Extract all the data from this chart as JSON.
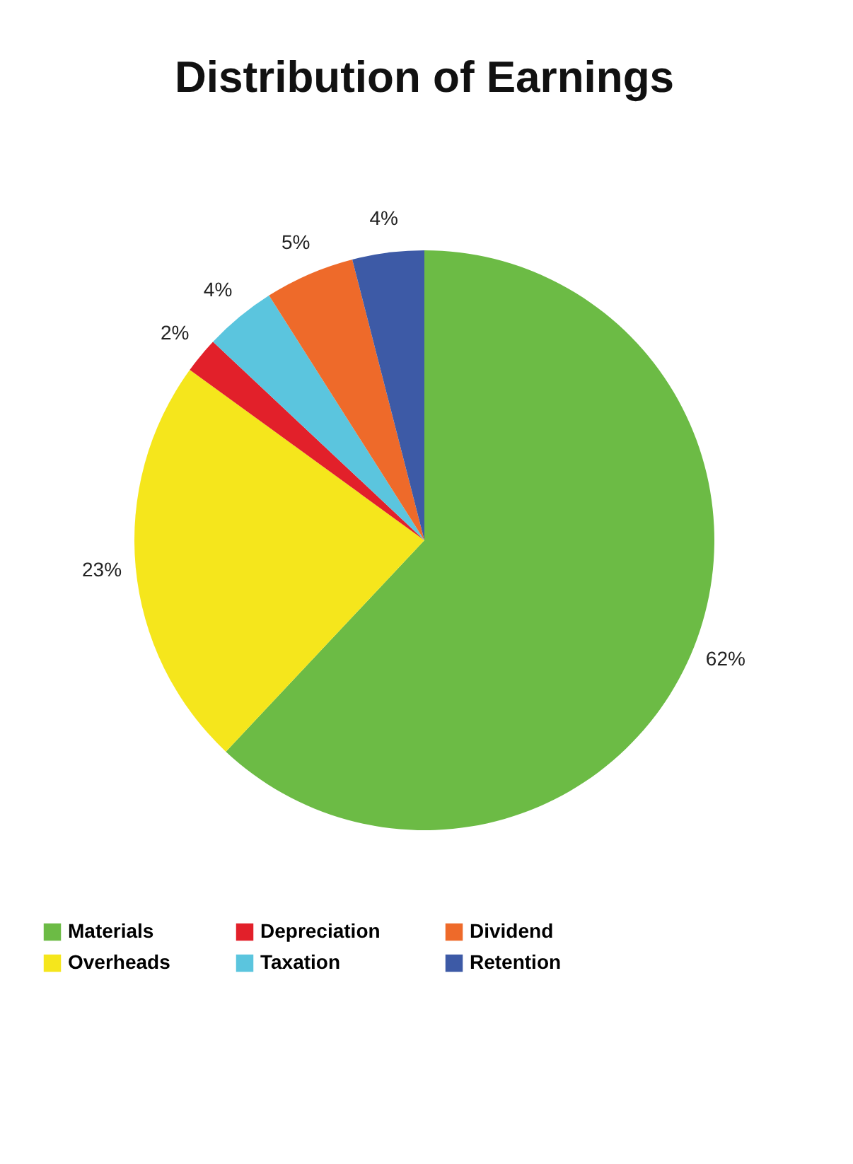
{
  "chart_data": {
    "type": "pie",
    "title": "Distribution of Earnings",
    "categories": [
      "Materials",
      "Overheads",
      "Depreciation",
      "Taxation",
      "Dividend",
      "Retention"
    ],
    "values": [
      62,
      23,
      2,
      4,
      5,
      4
    ],
    "value_labels": [
      "62%",
      "23%",
      "2%",
      "4%",
      "5%",
      "4%"
    ],
    "colors": [
      "#6cbb45",
      "#f5e61c",
      "#e2202a",
      "#5bc5de",
      "#ee6a2a",
      "#3d5aa6"
    ],
    "legend": "bottom"
  }
}
